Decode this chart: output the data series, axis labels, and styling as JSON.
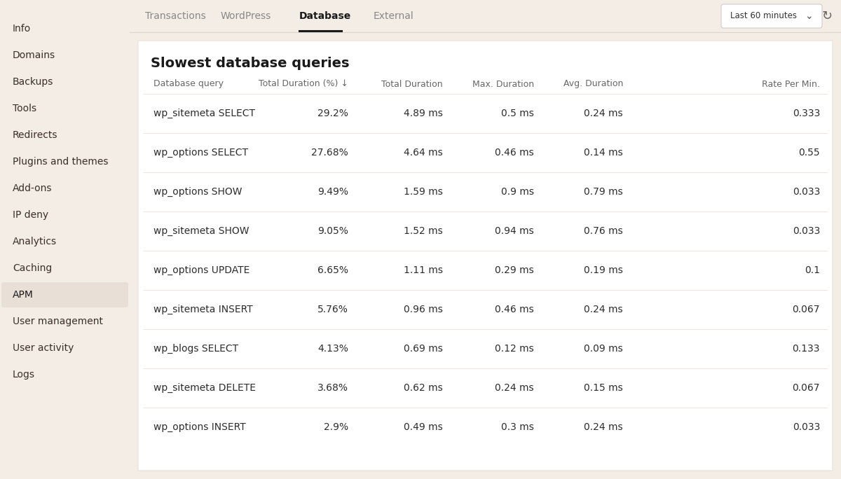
{
  "bg_color": "#f3ede6",
  "sidebar_bg": "#f3ede6",
  "main_bg": "#f3ede6",
  "card_bg": "#ffffff",
  "card_border": "#e8e0d8",
  "sidebar_items": [
    "Info",
    "Domains",
    "Backups",
    "Tools",
    "Redirects",
    "Plugins and themes",
    "Add-ons",
    "IP deny",
    "Analytics",
    "Caching",
    "APM",
    "User management",
    "User activity",
    "Logs"
  ],
  "active_item": "APM",
  "active_item_bg": "#e8dfd6",
  "active_item_text": "#1a1a1a",
  "sidebar_text_color": "#3a2e28",
  "nav_tabs": [
    "Transactions",
    "WordPress",
    "Database",
    "External"
  ],
  "active_tab": "Database",
  "active_tab_color": "#1a1a1a",
  "inactive_tab_color": "#888888",
  "active_tab_underline": "#1a1a1a",
  "dropdown_label": "Last 60 minutes",
  "dropdown_bg": "#ffffff",
  "dropdown_border": "#cccccc",
  "title": "Slowest database queries",
  "title_color": "#1a1a1a",
  "col_headers": [
    "Database query",
    "Total Duration (%) ↓",
    "Total Duration",
    "Max. Duration",
    "Avg. Duration",
    "Rate Per Min."
  ],
  "header_text_color": "#666666",
  "row_text_color": "#2c2c2c",
  "divider_color": "#ede6de",
  "rows": [
    [
      "wp_sitemeta SELECT",
      "29.2%",
      "4.89 ms",
      "0.5 ms",
      "0.24 ms",
      "0.333"
    ],
    [
      "wp_options SELECT",
      "27.68%",
      "4.64 ms",
      "0.46 ms",
      "0.14 ms",
      "0.55"
    ],
    [
      "wp_options SHOW",
      "9.49%",
      "1.59 ms",
      "0.9 ms",
      "0.79 ms",
      "0.033"
    ],
    [
      "wp_sitemeta SHOW",
      "9.05%",
      "1.52 ms",
      "0.94 ms",
      "0.76 ms",
      "0.033"
    ],
    [
      "wp_options UPDATE",
      "6.65%",
      "1.11 ms",
      "0.29 ms",
      "0.19 ms",
      "0.1"
    ],
    [
      "wp_sitemeta INSERT",
      "5.76%",
      "0.96 ms",
      "0.46 ms",
      "0.24 ms",
      "0.067"
    ],
    [
      "wp_blogs SELECT",
      "4.13%",
      "0.69 ms",
      "0.12 ms",
      "0.09 ms",
      "0.133"
    ],
    [
      "wp_sitemeta DELETE",
      "3.68%",
      "0.62 ms",
      "0.24 ms",
      "0.15 ms",
      "0.067"
    ],
    [
      "wp_options INSERT",
      "2.9%",
      "0.49 ms",
      "0.3 ms",
      "0.24 ms",
      "0.033"
    ]
  ]
}
